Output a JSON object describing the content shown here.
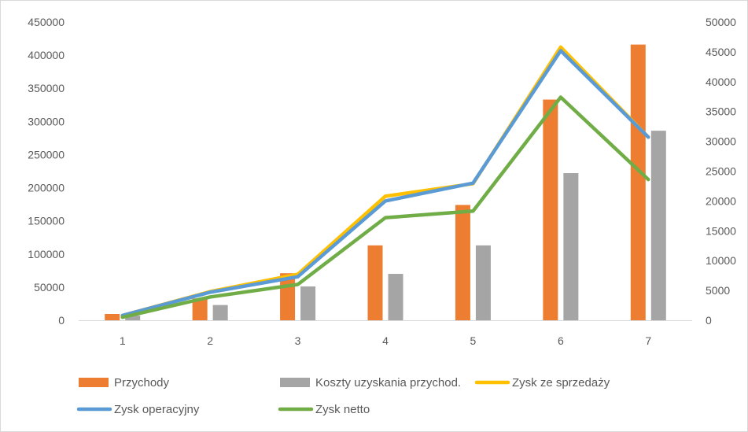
{
  "chart_data": {
    "type": "bar+line",
    "title": "",
    "categories": [
      "1",
      "2",
      "3",
      "4",
      "5",
      "6",
      "7"
    ],
    "y_left": {
      "min": 0,
      "max": 450000,
      "step": 50000,
      "ticks": [
        "0",
        "50000",
        "100000",
        "150000",
        "200000",
        "250000",
        "300000",
        "350000",
        "400000",
        "450000"
      ]
    },
    "y_right": {
      "min": 0,
      "max": 50000,
      "step": 5000,
      "ticks": [
        "0",
        "5000",
        "10000",
        "15000",
        "20000",
        "25000",
        "30000",
        "35000",
        "40000",
        "45000",
        "50000"
      ]
    },
    "grid": false,
    "bar_series": [
      {
        "name": "Przychody",
        "color": "#ed7d31",
        "axis": "left",
        "values": [
          9500,
          33000,
          71000,
          113000,
          174000,
          333000,
          416000
        ]
      },
      {
        "name": "Koszty uzyskania przychod.",
        "color": "#a5a5a5",
        "axis": "left",
        "values": [
          7000,
          23000,
          51000,
          70000,
          113000,
          222000,
          286000
        ]
      }
    ],
    "line_series": [
      {
        "name": "Zysk ze sprzedaży",
        "color": "#ffc000",
        "axis": "right",
        "values": [
          800,
          4800,
          7700,
          20800,
          22900,
          45800,
          30700
        ]
      },
      {
        "name": "Zysk operacyjny",
        "color": "#5b9bd5",
        "axis": "right",
        "values": [
          800,
          4700,
          7300,
          20000,
          23000,
          45200,
          30700
        ]
      },
      {
        "name": "Zysk netto",
        "color": "#70ad47",
        "axis": "right",
        "values": [
          500,
          3900,
          6000,
          17200,
          18300,
          37400,
          23600
        ]
      }
    ],
    "legend": {
      "position": "bottom",
      "items": [
        {
          "label": "Przychody",
          "kind": "bar",
          "color": "#ed7d31"
        },
        {
          "label": "Koszty uzyskania przychod.",
          "kind": "bar",
          "color": "#a5a5a5"
        },
        {
          "label": "Zysk ze sprzedaży",
          "kind": "line",
          "color": "#ffc000"
        },
        {
          "label": "Zysk operacyjny",
          "kind": "line",
          "color": "#5b9bd5"
        },
        {
          "label": "Zysk netto",
          "kind": "line",
          "color": "#70ad47"
        }
      ]
    }
  }
}
